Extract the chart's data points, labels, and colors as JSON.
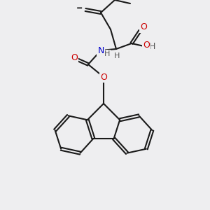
{
  "bg_color": "#eeeef0",
  "bond_color": "#1a1a1a",
  "bond_width": 1.5,
  "atom_colors": {
    "O": "#cc0000",
    "N": "#0000cc",
    "C": "#1a1a1a",
    "H": "#555555"
  },
  "font_size_atom": 9,
  "font_size_H": 8
}
